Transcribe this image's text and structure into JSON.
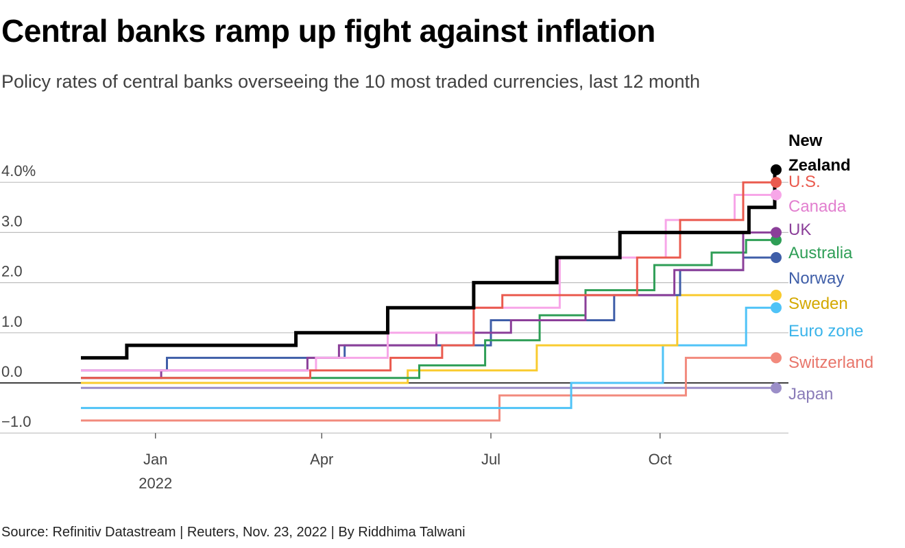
{
  "header": {
    "title": "Central banks ramp up fight against inflation",
    "subtitle": "Policy rates of central banks overseeing the 10 most traded currencies, last 12 month"
  },
  "footer": {
    "source": "Source: Refinitiv Datastream | Reuters, Nov. 23, 2022 | By Riddhima Talwani"
  },
  "chart_data": {
    "type": "line",
    "step": true,
    "title": "Central banks ramp up fight against inflation",
    "subtitle": "Policy rates of central banks overseeing the 10 most traded currencies, last 12 month",
    "xlabel": "",
    "ylabel": "",
    "x_range": [
      0,
      12.1
    ],
    "x_ticks": [
      {
        "x": 1.3,
        "label": "Jan",
        "sublabel": "2022"
      },
      {
        "x": 4.2,
        "label": "Apr",
        "sublabel": ""
      },
      {
        "x": 7.15,
        "label": "Jul",
        "sublabel": ""
      },
      {
        "x": 10.1,
        "label": "Oct",
        "sublabel": ""
      }
    ],
    "ylim": [
      -1.0,
      4.0
    ],
    "y_ticks": [
      {
        "value": 4.0,
        "label": "4.0%"
      },
      {
        "value": 3.0,
        "label": "3.0"
      },
      {
        "value": 2.0,
        "label": "2.0"
      },
      {
        "value": 1.0,
        "label": "1.0"
      },
      {
        "value": 0.0,
        "label": "0.0"
      },
      {
        "value": -1.0,
        "label": "−1.0"
      }
    ],
    "grid": true,
    "series": [
      {
        "name": "Japan",
        "color": "#9b8ec8",
        "label_color": "#8a7cb8",
        "bold": false,
        "steps": [
          [
            0,
            -0.1
          ]
        ]
      },
      {
        "name": "Switzerland",
        "color": "#f28a7d",
        "label_color": "#e8756a",
        "bold": false,
        "steps": [
          [
            0,
            -0.75
          ],
          [
            7.3,
            -0.25
          ],
          [
            10.55,
            0.5
          ]
        ]
      },
      {
        "name": "Euro zone",
        "color": "#4fc3f7",
        "label_color": "#3bb4ea",
        "bold": false,
        "steps": [
          [
            0,
            -0.5
          ],
          [
            8.55,
            0.0
          ],
          [
            10.15,
            0.75
          ],
          [
            11.6,
            1.5
          ]
        ]
      },
      {
        "name": "Sweden",
        "color": "#f9cb2f",
        "label_color": "#d4a800",
        "bold": false,
        "steps": [
          [
            0,
            0.0
          ],
          [
            5.7,
            0.25
          ],
          [
            7.95,
            0.75
          ],
          [
            10.4,
            1.75
          ]
        ]
      },
      {
        "name": "Norway",
        "color": "#3f5ea8",
        "label_color": "#3f5ea8",
        "bold": false,
        "steps": [
          [
            0,
            0.25
          ],
          [
            1.5,
            0.5
          ],
          [
            4.6,
            0.75
          ],
          [
            7.15,
            1.25
          ],
          [
            9.3,
            1.75
          ],
          [
            10.45,
            2.25
          ],
          [
            11.55,
            2.5
          ]
        ]
      },
      {
        "name": "Australia",
        "color": "#2e9e56",
        "label_color": "#2e9e56",
        "bold": false,
        "steps": [
          [
            0,
            0.1
          ],
          [
            5.9,
            0.35
          ],
          [
            7.05,
            0.85
          ],
          [
            8.0,
            1.35
          ],
          [
            8.8,
            1.85
          ],
          [
            10.0,
            2.35
          ],
          [
            11.0,
            2.6
          ],
          [
            11.6,
            2.85
          ]
        ]
      },
      {
        "name": "UK",
        "color": "#8b3f99",
        "label_color": "#8b3f99",
        "bold": false,
        "steps": [
          [
            0,
            0.1
          ],
          [
            1.4,
            0.25
          ],
          [
            3.95,
            0.5
          ],
          [
            4.5,
            0.75
          ],
          [
            6.2,
            1.0
          ],
          [
            7.5,
            1.25
          ],
          [
            8.8,
            1.75
          ],
          [
            10.35,
            2.25
          ],
          [
            11.55,
            3.0
          ]
        ]
      },
      {
        "name": "Canada",
        "color": "#f7a6e8",
        "label_color": "#e27fcf",
        "bold": false,
        "steps": [
          [
            0,
            0.25
          ],
          [
            4.1,
            0.5
          ],
          [
            5.35,
            1.0
          ],
          [
            6.85,
            1.5
          ],
          [
            8.35,
            2.5
          ],
          [
            10.2,
            3.25
          ],
          [
            11.4,
            3.75
          ]
        ]
      },
      {
        "name": "U.S.",
        "color": "#ea5a4e",
        "label_color": "#ea5a4e",
        "bold": false,
        "steps": [
          [
            0,
            0.1
          ],
          [
            4.0,
            0.25
          ],
          [
            5.4,
            0.5
          ],
          [
            6.3,
            0.75
          ],
          [
            6.85,
            1.5
          ],
          [
            7.35,
            1.75
          ],
          [
            9.7,
            2.5
          ],
          [
            10.45,
            3.25
          ],
          [
            11.55,
            4.0
          ]
        ]
      },
      {
        "name": "New Zealand",
        "color": "#000000",
        "label_color": "#000000",
        "bold": true,
        "steps": [
          [
            0,
            0.5
          ],
          [
            0.8,
            0.75
          ],
          [
            3.75,
            1.0
          ],
          [
            5.35,
            1.5
          ],
          [
            6.85,
            2.0
          ],
          [
            8.3,
            2.5
          ],
          [
            9.4,
            3.0
          ],
          [
            11.65,
            3.5
          ],
          [
            12.1,
            4.25
          ]
        ]
      }
    ]
  }
}
